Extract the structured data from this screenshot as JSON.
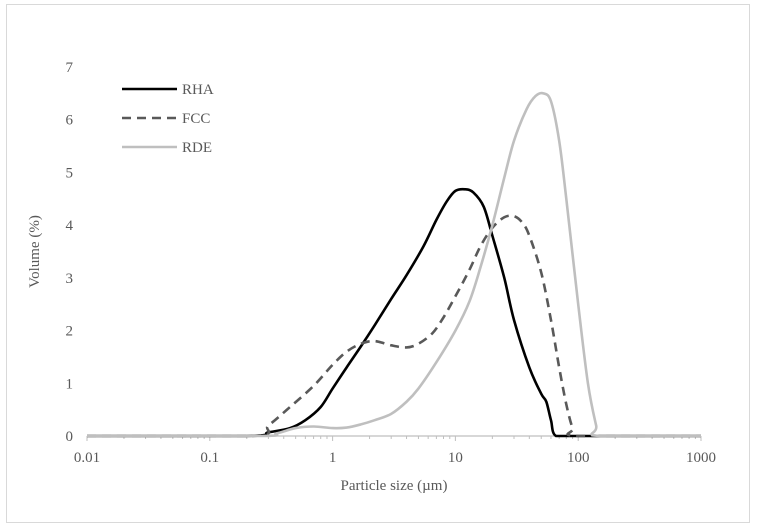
{
  "chart_data": {
    "type": "line",
    "title": "",
    "xlabel": "Particle size (µm)",
    "ylabel": "Volume (%)",
    "xscale": "log",
    "xlim": [
      0.01,
      1000
    ],
    "ylim": [
      0,
      7
    ],
    "x_ticks": [
      0.01,
      0.1,
      1,
      10,
      100,
      1000
    ],
    "x_tick_labels": [
      "0.01",
      "0.1",
      "1",
      "10",
      "100",
      "1000"
    ],
    "y_ticks": [
      0,
      1,
      2,
      3,
      4,
      5,
      6,
      7
    ],
    "y_tick_labels": [
      "0",
      "1",
      "2",
      "3",
      "4",
      "5",
      "6",
      "7"
    ],
    "grid": false,
    "legend_position": "top-left",
    "series": [
      {
        "name": "RHA",
        "color": "#000000",
        "dash": "solid",
        "points": [
          [
            0.01,
            0
          ],
          [
            0.2,
            0
          ],
          [
            0.3,
            0.07
          ],
          [
            0.45,
            0.15
          ],
          [
            0.6,
            0.3
          ],
          [
            0.8,
            0.55
          ],
          [
            1.0,
            0.9
          ],
          [
            1.3,
            1.3
          ],
          [
            1.7,
            1.7
          ],
          [
            2.2,
            2.1
          ],
          [
            3.0,
            2.6
          ],
          [
            4.0,
            3.05
          ],
          [
            5.5,
            3.6
          ],
          [
            7.0,
            4.1
          ],
          [
            8.5,
            4.45
          ],
          [
            10,
            4.65
          ],
          [
            12,
            4.68
          ],
          [
            14,
            4.62
          ],
          [
            17,
            4.35
          ],
          [
            20,
            3.8
          ],
          [
            25,
            3.0
          ],
          [
            30,
            2.2
          ],
          [
            40,
            1.3
          ],
          [
            50,
            0.8
          ],
          [
            55,
            0.65
          ],
          [
            60,
            0.3
          ],
          [
            66,
            0
          ],
          [
            100,
            0
          ],
          [
            1000,
            0
          ]
        ]
      },
      {
        "name": "FCC",
        "color": "#595959",
        "dash": "dashed",
        "points": [
          [
            0.01,
            0
          ],
          [
            0.22,
            0
          ],
          [
            0.3,
            0.2
          ],
          [
            0.45,
            0.55
          ],
          [
            0.7,
            0.95
          ],
          [
            1.0,
            1.35
          ],
          [
            1.3,
            1.6
          ],
          [
            1.7,
            1.75
          ],
          [
            2.2,
            1.8
          ],
          [
            3.0,
            1.72
          ],
          [
            4.0,
            1.68
          ],
          [
            5.0,
            1.75
          ],
          [
            6.5,
            1.95
          ],
          [
            8.0,
            2.25
          ],
          [
            10,
            2.65
          ],
          [
            13,
            3.15
          ],
          [
            16,
            3.6
          ],
          [
            20,
            3.95
          ],
          [
            25,
            4.15
          ],
          [
            30,
            4.17
          ],
          [
            35,
            4.05
          ],
          [
            40,
            3.8
          ],
          [
            50,
            3.1
          ],
          [
            60,
            2.2
          ],
          [
            70,
            1.3
          ],
          [
            80,
            0.6
          ],
          [
            90,
            0.15
          ],
          [
            100,
            0
          ],
          [
            1000,
            0
          ]
        ]
      },
      {
        "name": "RDE",
        "color": "#bfbfbf",
        "dash": "solid",
        "points": [
          [
            0.01,
            0
          ],
          [
            0.25,
            0
          ],
          [
            0.35,
            0.05
          ],
          [
            0.5,
            0.15
          ],
          [
            0.7,
            0.18
          ],
          [
            1.0,
            0.15
          ],
          [
            1.3,
            0.16
          ],
          [
            1.7,
            0.22
          ],
          [
            2.2,
            0.3
          ],
          [
            3.0,
            0.42
          ],
          [
            4.0,
            0.65
          ],
          [
            5.0,
            0.9
          ],
          [
            7.0,
            1.4
          ],
          [
            10,
            2.0
          ],
          [
            13,
            2.55
          ],
          [
            16,
            3.2
          ],
          [
            20,
            4.0
          ],
          [
            25,
            4.9
          ],
          [
            30,
            5.6
          ],
          [
            38,
            6.2
          ],
          [
            45,
            6.45
          ],
          [
            52,
            6.5
          ],
          [
            60,
            6.35
          ],
          [
            70,
            5.6
          ],
          [
            80,
            4.5
          ],
          [
            100,
            2.5
          ],
          [
            120,
            1.0
          ],
          [
            140,
            0.2
          ],
          [
            150,
            0
          ],
          [
            1000,
            0
          ]
        ]
      }
    ]
  }
}
